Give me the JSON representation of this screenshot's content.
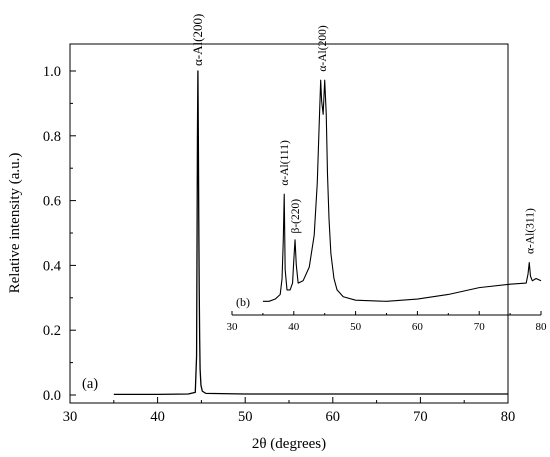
{
  "chart_data": [
    {
      "panel": "(a)",
      "type": "line",
      "xlabel": "2θ (degrees)",
      "ylabel": "Relative intensity (a.u.)",
      "xlim": [
        30,
        80
      ],
      "ylim": [
        0,
        1.05
      ],
      "xticks": [
        "30",
        "40",
        "50",
        "60",
        "70",
        "80"
      ],
      "yticks": [
        "0.0",
        "0.2",
        "0.4",
        "0.6",
        "0.8",
        "1.0"
      ],
      "annotations": [
        {
          "text": "α-Al(200)",
          "x": 44.6
        }
      ],
      "series": [
        {
          "x": [
            35,
            40,
            43.5,
            44.3,
            44.45,
            44.55,
            44.6,
            44.65,
            44.7,
            44.75,
            44.8,
            44.85,
            44.95,
            45.1,
            45.5,
            50,
            60,
            70,
            80
          ],
          "y": [
            0.002,
            0.002,
            0.003,
            0.008,
            0.12,
            0.8,
            1.0,
            0.8,
            0.54,
            0.33,
            0.18,
            0.08,
            0.03,
            0.012,
            0.005,
            0.003,
            0.003,
            0.003,
            0.003
          ]
        }
      ]
    },
    {
      "panel": "(b)",
      "type": "line",
      "xlim": [
        30,
        80
      ],
      "ylim": [
        0,
        1.1
      ],
      "xticks": [
        "30",
        "40",
        "50",
        "60",
        "70",
        "80"
      ],
      "annotations": [
        {
          "text": "α-Al(111)",
          "x": 38.4
        },
        {
          "text": "β-(220)",
          "x": 40.2
        },
        {
          "text": "α-Al(200)",
          "x": 44.6
        },
        {
          "text": "α-Al(311)",
          "x": 78.1
        }
      ],
      "series": [
        {
          "x": [
            35,
            36,
            37,
            37.8,
            38.1,
            38.3,
            38.45,
            38.6,
            38.9,
            39.4,
            39.8,
            40.0,
            40.2,
            40.4,
            40.7,
            41.5,
            42.5,
            43.3,
            43.8,
            44.1,
            44.35,
            44.5,
            44.75,
            45.0,
            45.25,
            45.45,
            45.7,
            46.0,
            46.5,
            47,
            48,
            50,
            55,
            60,
            65,
            70,
            75,
            77.6,
            77.9,
            78.1,
            78.3,
            78.6,
            79.2,
            80
          ],
          "y": [
            0.06,
            0.06,
            0.07,
            0.09,
            0.16,
            0.33,
            0.53,
            0.2,
            0.11,
            0.11,
            0.14,
            0.24,
            0.33,
            0.22,
            0.14,
            0.15,
            0.21,
            0.35,
            0.58,
            0.83,
            1.03,
            0.94,
            0.88,
            1.03,
            0.88,
            0.62,
            0.42,
            0.27,
            0.16,
            0.11,
            0.08,
            0.065,
            0.06,
            0.07,
            0.09,
            0.12,
            0.135,
            0.14,
            0.18,
            0.23,
            0.17,
            0.15,
            0.16,
            0.15
          ]
        }
      ]
    }
  ],
  "panel_labels": {
    "a": "(a)",
    "b": "(b)"
  }
}
